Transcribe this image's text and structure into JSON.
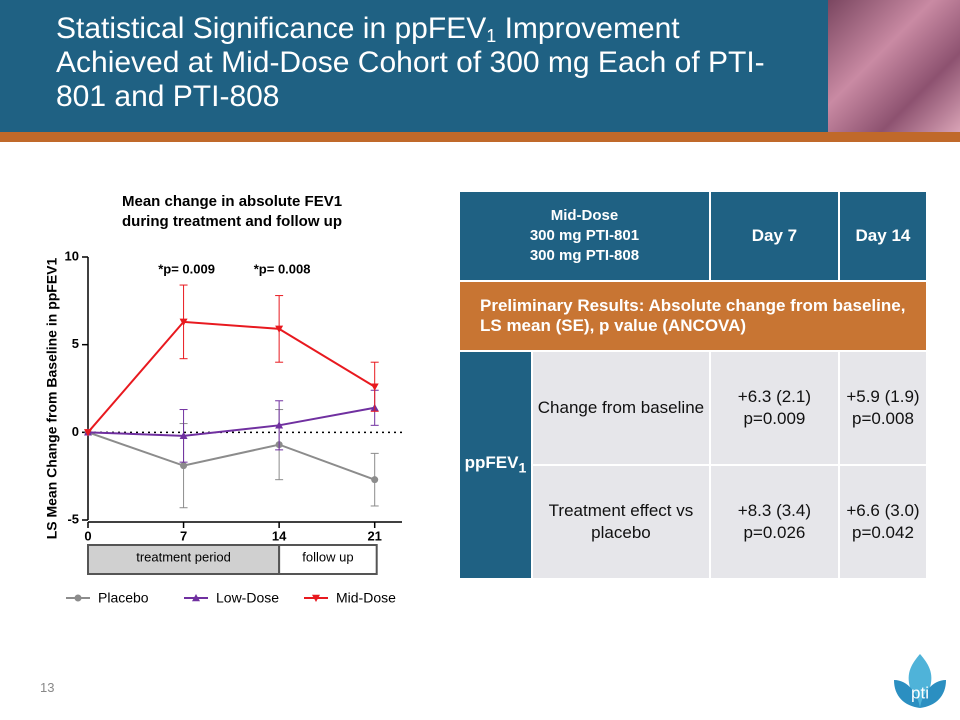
{
  "header": {
    "title_parts": [
      "Statistical Significance in ppFEV",
      "1",
      " Improvement Achieved at Mid-Dose Cohort of 300 mg Each of PTI-801 and PTI-808"
    ]
  },
  "chart_data": {
    "type": "line",
    "title": "Mean change in absolute FEV1 during treatment and follow up",
    "y_label": "LS Mean Change from Baseline in ppFEV1",
    "x": [
      0,
      7,
      14,
      21
    ],
    "xlim": [
      0,
      23
    ],
    "xticks": [
      0,
      7,
      14,
      21
    ],
    "ylim": [
      -5,
      10
    ],
    "yticks": [
      -5,
      0,
      5,
      10
    ],
    "series": [
      {
        "name": "Placebo",
        "color": "#8c8c8c",
        "marker": "circle",
        "values": [
          0,
          -1.9,
          -0.7,
          -2.7
        ],
        "errors": [
          0,
          2.4,
          2.0,
          1.5
        ]
      },
      {
        "name": "Low-Dose",
        "color": "#7030a0",
        "marker": "triangle-up",
        "values": [
          0,
          -0.2,
          0.4,
          1.4
        ],
        "errors": [
          0,
          1.5,
          1.4,
          1.0
        ]
      },
      {
        "name": "Mid-Dose",
        "color": "#e8191f",
        "marker": "triangle-down",
        "values": [
          0,
          6.3,
          5.9,
          2.6
        ],
        "errors": [
          0,
          2.1,
          1.9,
          1.4
        ]
      }
    ],
    "annotations": [
      "*p= 0.009",
      "*p= 0.008"
    ],
    "periods": [
      "treatment period",
      "follow up"
    ]
  },
  "table": {
    "dose_lines": [
      "Mid-Dose",
      "300 mg PTI-801",
      "300 mg PTI-808"
    ],
    "columns": [
      "Day 7",
      "Day 14"
    ],
    "banner": "Preliminary Results: Absolute change from baseline, LS mean (SE), p value (ANCOVA)",
    "group_label": [
      "ppFEV",
      "1"
    ],
    "rows": [
      {
        "label": "Change from baseline",
        "cells": [
          [
            "+6.3 (2.1)",
            "p=0.009"
          ],
          [
            "+5.9 (1.9)",
            "p=0.008"
          ]
        ]
      },
      {
        "label": "Treatment effect vs placebo",
        "cells": [
          [
            "+8.3 (3.4)",
            "p=0.026"
          ],
          [
            "+6.6 (3.0)",
            "p=0.042"
          ]
        ]
      }
    ]
  },
  "footer": {
    "page": "13",
    "logo": "pti"
  }
}
